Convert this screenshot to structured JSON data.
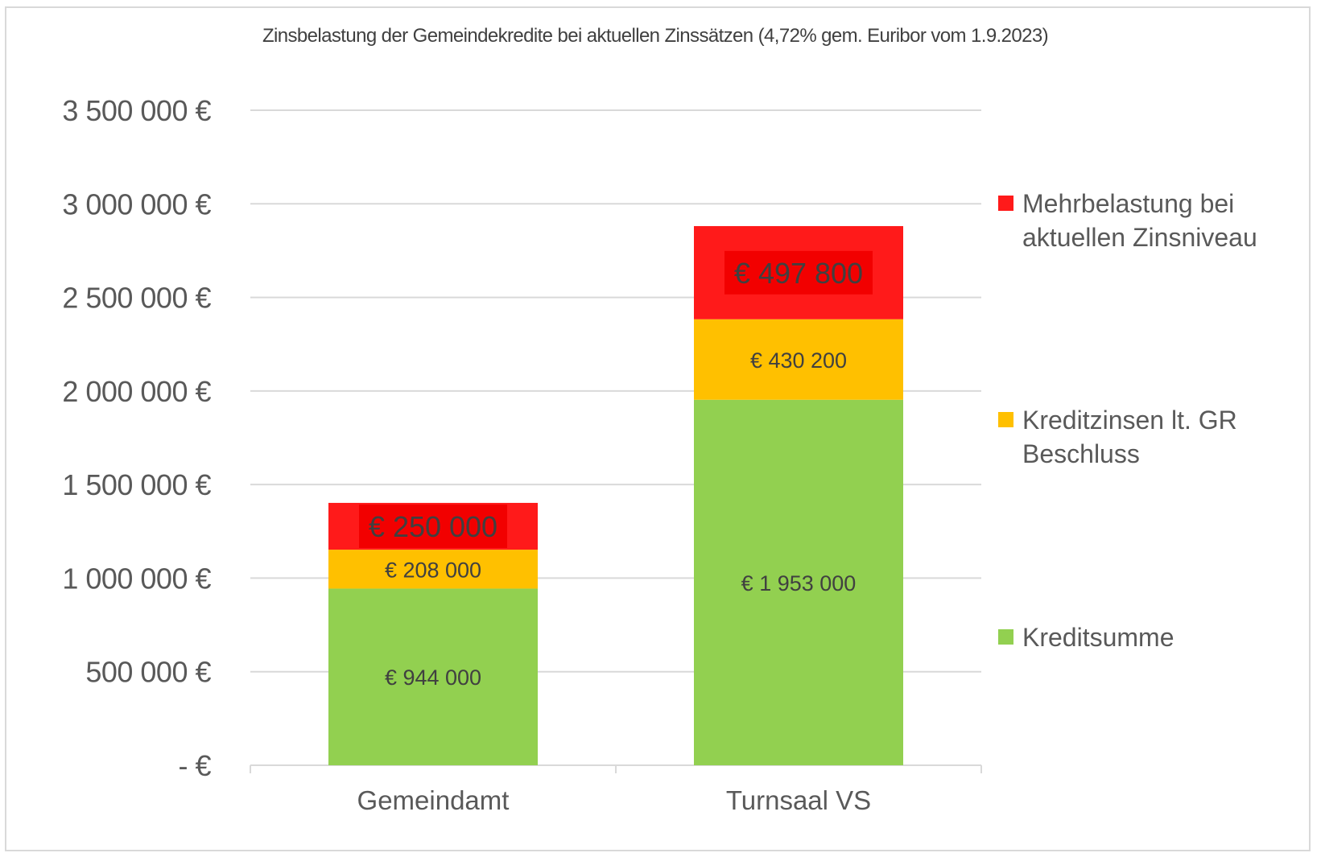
{
  "chart_data": {
    "type": "bar",
    "stacked": true,
    "title": "Zinsbelastung der Gemeindekredite bei aktuellen Zinssätzen (4,72%  gem. Euribor vom 1.9.2023)",
    "categories": [
      "Gemeindamt",
      "Turnsaal VS"
    ],
    "series": [
      {
        "name": "Kreditsumme",
        "values": [
          944000,
          1953000
        ],
        "labels": [
          "€ 944 000",
          "€ 1 953 000"
        ],
        "color": "#92d050"
      },
      {
        "name": "Kreditzinsen lt. GR Beschluss",
        "values": [
          208000,
          430200
        ],
        "labels": [
          "€ 208 000",
          "€ 430 200"
        ],
        "color": "#ffc000"
      },
      {
        "name": "Mehrbelastung bei aktuellen Zinsniveau",
        "values": [
          250000,
          497800
        ],
        "labels": [
          "€ 250 000",
          "€ 497 800"
        ],
        "color": "#ff1a1a"
      }
    ],
    "ylim": [
      0,
      3500000
    ],
    "yticks": [
      0,
      500000,
      1000000,
      1500000,
      2000000,
      2500000,
      3000000,
      3500000
    ],
    "ytick_labels": [
      "- €",
      "500 000 €",
      "1 000 000 €",
      "1 500 000 €",
      "2 000 000 €",
      "2 500 000 €",
      "3 000 000 €",
      "3 500 000 €"
    ],
    "grid": true,
    "legend_position": "right",
    "legend": [
      {
        "lines": [
          "Mehrbelastung bei",
          "aktuellen Zinsniveau"
        ],
        "color": "#ff1a1a"
      },
      {
        "lines": [
          "Kreditzinsen lt. GR",
          "Beschluss"
        ],
        "color": "#ffc000"
      },
      {
        "lines": [
          "Kreditsumme"
        ],
        "color": "#92d050"
      }
    ]
  }
}
